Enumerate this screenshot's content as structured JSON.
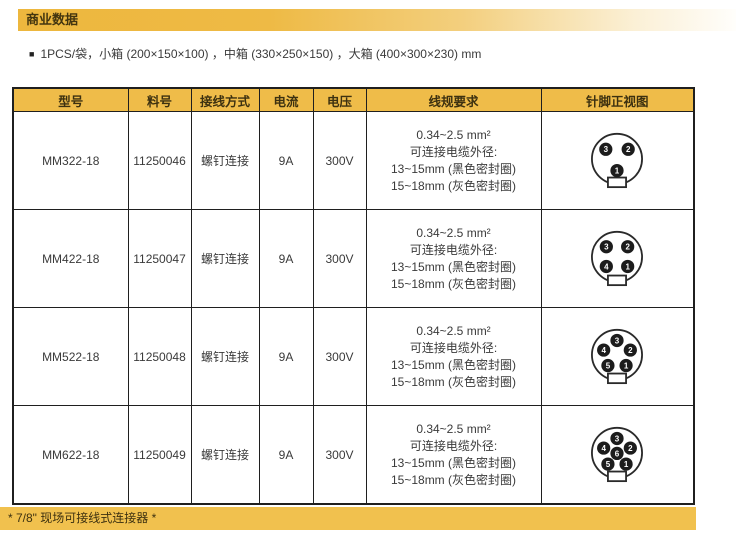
{
  "title_bar": {
    "label": "商业数据"
  },
  "packaging_note": {
    "bullet": "■",
    "text": "1PCS/袋，小箱 (200×150×100) ，中箱 (330×250×150) ，大箱 (400×300×230) mm"
  },
  "table": {
    "headers": {
      "model": "型号",
      "part_no": "料号",
      "connection": "接线方式",
      "current": "电流",
      "voltage": "电压",
      "wire_spec": "线规要求",
      "pin_view": "针脚正视图"
    },
    "rows": [
      {
        "model": "MM322-18",
        "part_no": "11250046",
        "connection": "螺钉连接",
        "current": "9A",
        "voltage": "300V",
        "wire_spec": {
          "line1": "0.34~2.5 mm²",
          "line2": "可连接电缆外径:",
          "line3": "13~15mm (黑色密封圈)",
          "line4": "15~18mm (灰色密封圈)"
        },
        "pin_count": "3",
        "pins": [
          {
            "n": "3",
            "x": 19.5,
            "y": 18
          },
          {
            "n": "2",
            "x": 40.5,
            "y": 18
          },
          {
            "n": "1",
            "x": 30,
            "y": 38
          }
        ]
      },
      {
        "model": "MM422-18",
        "part_no": "11250047",
        "connection": "螺钉连接",
        "current": "9A",
        "voltage": "300V",
        "wire_spec": {
          "line1": "0.34~2.5 mm²",
          "line2": "可连接电缆外径:",
          "line3": "13~15mm (黑色密封圈)",
          "line4": "15~18mm (灰色密封圈)"
        },
        "pin_count": "4",
        "pins": [
          {
            "n": "3",
            "x": 20,
            "y": 17.5
          },
          {
            "n": "2",
            "x": 40,
            "y": 17.5
          },
          {
            "n": "4",
            "x": 20,
            "y": 36
          },
          {
            "n": "1",
            "x": 40,
            "y": 36
          }
        ]
      },
      {
        "model": "MM522-18",
        "part_no": "11250048",
        "connection": "螺钉连接",
        "current": "9A",
        "voltage": "300V",
        "wire_spec": {
          "line1": "0.34~2.5 mm²",
          "line2": "可连接电缆外径:",
          "line3": "13~15mm (黑色密封圈)",
          "line4": "15~18mm (灰色密封圈)"
        },
        "pin_count": "5",
        "pins": [
          {
            "n": "3",
            "x": 30,
            "y": 13.5
          },
          {
            "n": "4",
            "x": 17.5,
            "y": 22.5
          },
          {
            "n": "2",
            "x": 42.5,
            "y": 22.5
          },
          {
            "n": "5",
            "x": 21.5,
            "y": 37
          },
          {
            "n": "1",
            "x": 38.5,
            "y": 37
          }
        ]
      },
      {
        "model": "MM622-18",
        "part_no": "11250049",
        "connection": "螺钉连接",
        "current": "9A",
        "voltage": "300V",
        "wire_spec": {
          "line1": "0.34~2.5 mm²",
          "line2": "可连接电缆外径:",
          "line3": "13~15mm (黑色密封圈)",
          "line4": "15~18mm (灰色密封圈)"
        },
        "pin_count": "6",
        "pins": [
          {
            "n": "3",
            "x": 30,
            "y": 13.5
          },
          {
            "n": "4",
            "x": 17.5,
            "y": 22.5
          },
          {
            "n": "2",
            "x": 42.5,
            "y": 22.5
          },
          {
            "n": "5",
            "x": 21.5,
            "y": 37.5
          },
          {
            "n": "1",
            "x": 38.5,
            "y": 37.5
          },
          {
            "n": "6",
            "x": 30,
            "y": 27.5
          }
        ]
      }
    ]
  },
  "footer": {
    "text": "* 7/8\" 现场可接线式连接器 *"
  },
  "colors": {
    "gold": "#efbc49",
    "gold_bar": "#f1c14e",
    "dark_text_on_gold": "#3d3110",
    "body_text": "#3a3a3a",
    "table_border": "#1f1f1f",
    "pin_fill": "#1c1c1c",
    "pin_number": "#ffffff"
  }
}
